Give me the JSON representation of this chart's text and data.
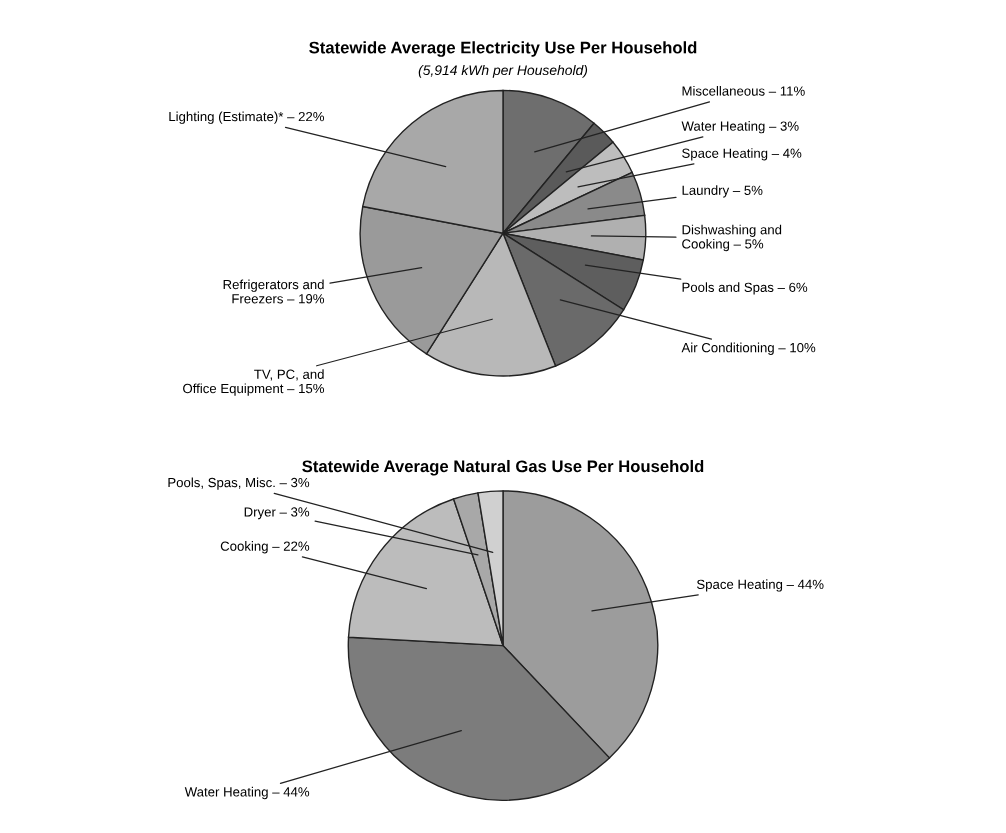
{
  "chart_data": [
    {
      "type": "pie",
      "title": "Statewide Average Electricity Use Per Household",
      "subtitle": "(5,914 kWh per Household)",
      "categories": [
        "Miscellaneous",
        "Water Heating",
        "Space Heating",
        "Laundry",
        "Dishwashing and\nCooking",
        "Pools and Spas",
        "Air Conditioning",
        "TV, PC, and\nOffice Equipment",
        "Refrigerators and\nFreezers",
        "Lighting (Estimate)*"
      ],
      "values": [
        11,
        3,
        4,
        5,
        5,
        6,
        10,
        15,
        19,
        22
      ],
      "value_labels": [
        "11%",
        "3%",
        "4%",
        "5%",
        "5%",
        "6%",
        "10%",
        "15%",
        "19%",
        "22%"
      ],
      "colors": [
        "#6e6e6e",
        "#5a5a5a",
        "#bdbdbd",
        "#8a8a8a",
        "#b0b0b0",
        "#5e5e5e",
        "#6a6a6a",
        "#b8b8b8",
        "#9a9a9a",
        "#a8a8a8"
      ]
    },
    {
      "type": "pie",
      "title": "Statewide Average Natural Gas Use Per Household",
      "categories": [
        "Space Heating",
        "Water Heating",
        "Cooking",
        "Dryer",
        "Pools, Spas, Misc."
      ],
      "values": [
        44,
        44,
        22,
        3,
        3
      ],
      "value_labels": [
        "44%",
        "44%",
        "22%",
        "3%",
        "3%"
      ],
      "colors": [
        "#9c9c9c",
        "#7c7c7c",
        "#bcbcbc",
        "#a8a8a8",
        "#d0d0d0"
      ]
    }
  ]
}
